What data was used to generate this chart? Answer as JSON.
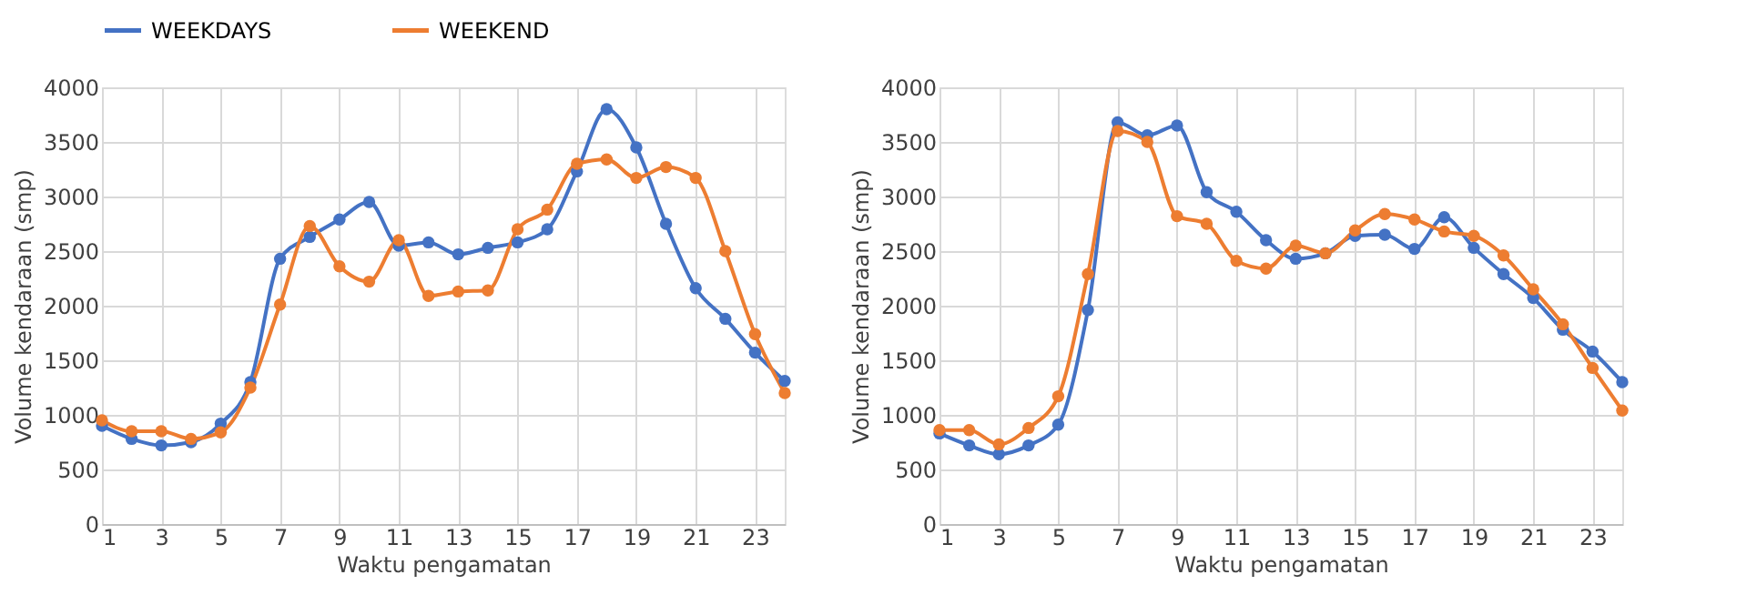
{
  "chart_data": [
    {
      "type": "line",
      "xlabel": "Waktu pengamatan",
      "ylabel": "Volume kendaraan (smp)",
      "x": [
        1,
        2,
        3,
        4,
        5,
        6,
        7,
        8,
        9,
        10,
        11,
        12,
        13,
        14,
        15,
        16,
        17,
        18,
        19,
        20,
        21,
        22,
        23,
        24
      ],
      "xlim": [
        1,
        24
      ],
      "xticks": [
        1,
        3,
        5,
        7,
        9,
        11,
        13,
        15,
        17,
        19,
        21,
        23
      ],
      "ylim": [
        0,
        4000
      ],
      "yticks": [
        0,
        500,
        1000,
        1500,
        2000,
        2500,
        3000,
        3500,
        4000
      ],
      "grid": true,
      "legend": "top",
      "marker": "circle",
      "series": [
        {
          "name": "WEEKDAYS",
          "color": "#4472c4",
          "values": [
            900,
            780,
            720,
            750,
            920,
            1300,
            2430,
            2630,
            2790,
            2950,
            2550,
            2580,
            2470,
            2530,
            2580,
            2700,
            3230,
            3800,
            3450,
            2750,
            2160,
            1880,
            1570,
            1310
          ]
        },
        {
          "name": "WEEKEND",
          "color": "#ed7d31",
          "values": [
            950,
            850,
            850,
            780,
            840,
            1250,
            2010,
            2730,
            2360,
            2220,
            2600,
            2090,
            2130,
            2140,
            2700,
            2880,
            3300,
            3340,
            3170,
            3270,
            3170,
            2500,
            1740,
            1200
          ]
        }
      ]
    },
    {
      "type": "line",
      "xlabel": "Waktu pengamatan",
      "ylabel": "Volume kendaraan (smp)",
      "x": [
        1,
        2,
        3,
        4,
        5,
        6,
        7,
        8,
        9,
        10,
        11,
        12,
        13,
        14,
        15,
        16,
        17,
        18,
        19,
        20,
        21,
        22,
        23,
        24
      ],
      "xlim": [
        1,
        24
      ],
      "xticks": [
        1,
        3,
        5,
        7,
        9,
        11,
        13,
        15,
        17,
        19,
        21,
        23
      ],
      "ylim": [
        0,
        4000
      ],
      "yticks": [
        0,
        500,
        1000,
        1500,
        2000,
        2500,
        3000,
        3500,
        4000
      ],
      "grid": true,
      "legend": "top",
      "marker": "circle",
      "series": [
        {
          "name": "WEEKDAYS",
          "color": "#4472c4",
          "values": [
            830,
            720,
            640,
            720,
            910,
            1960,
            3680,
            3560,
            3650,
            3040,
            2860,
            2600,
            2430,
            2480,
            2640,
            2650,
            2520,
            2810,
            2530,
            2290,
            2070,
            1780,
            1580,
            1300
          ]
        },
        {
          "name": "WEEKEND",
          "color": "#ed7d31",
          "values": [
            860,
            860,
            730,
            880,
            1170,
            2290,
            3600,
            3500,
            2820,
            2750,
            2410,
            2340,
            2550,
            2480,
            2690,
            2840,
            2790,
            2680,
            2640,
            2460,
            2150,
            1830,
            1430,
            1040
          ]
        }
      ]
    }
  ]
}
